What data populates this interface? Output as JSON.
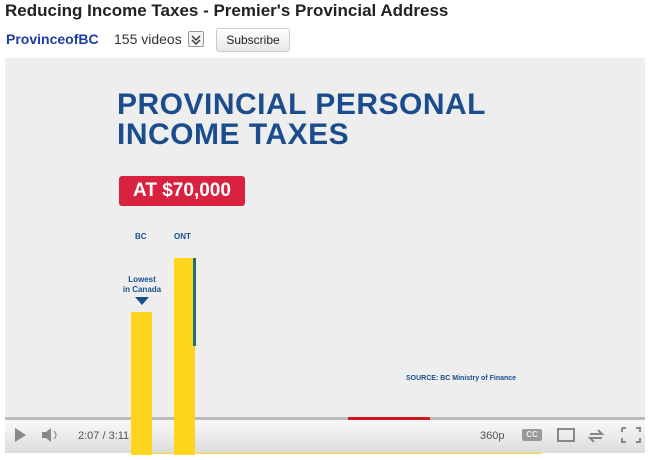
{
  "header": {
    "title": "Reducing Income Taxes - Premier's Provincial Address",
    "channel": "ProvinceofBC",
    "video_count": "155 videos",
    "subscribe": "Subscribe"
  },
  "video": {
    "heading_line1": "PROVINCIAL PERSONAL",
    "heading_line2": "INCOME TAXES",
    "badge": "AT $70,000",
    "labels": [
      "BC",
      "ONT"
    ],
    "annotation_line1": "Lowest",
    "annotation_line2": "in Canada",
    "source": "SOURCE: BC Ministry of Finance"
  },
  "controls": {
    "time": "2:07 / 3:11",
    "quality": "360p",
    "captions": "CC"
  }
}
